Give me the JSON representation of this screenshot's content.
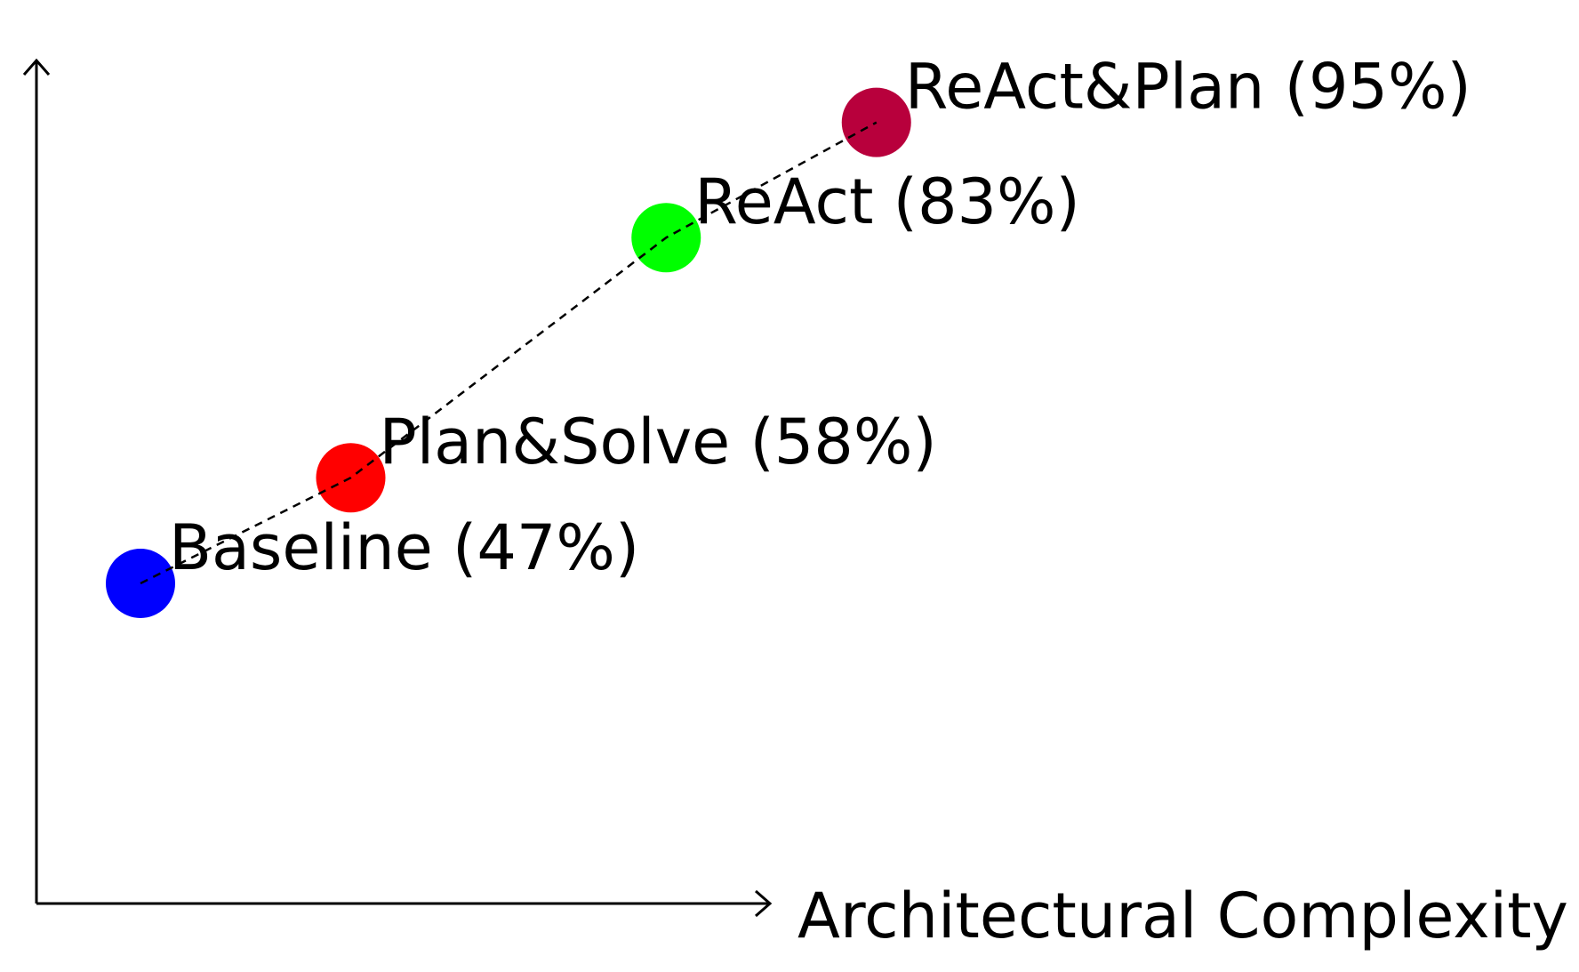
{
  "chart_data": {
    "type": "scatter",
    "title": "",
    "xlabel": "Architectural Complexity",
    "ylabel": "",
    "grid": false,
    "legend": "none",
    "connector": "dashed",
    "points": [
      {
        "x": 1,
        "y": 47,
        "label": "Baseline (47%)",
        "color": "#0000ff"
      },
      {
        "x": 2,
        "y": 58,
        "label": "Plan&Solve (58%)",
        "color": "#ff0000"
      },
      {
        "x": 3.5,
        "y": 83,
        "label": "ReAct (83%)",
        "color": "#00ff00"
      },
      {
        "x": 4.5,
        "y": 95,
        "label": "ReAct&Plan (95%)",
        "color": "#b8003c"
      }
    ]
  }
}
